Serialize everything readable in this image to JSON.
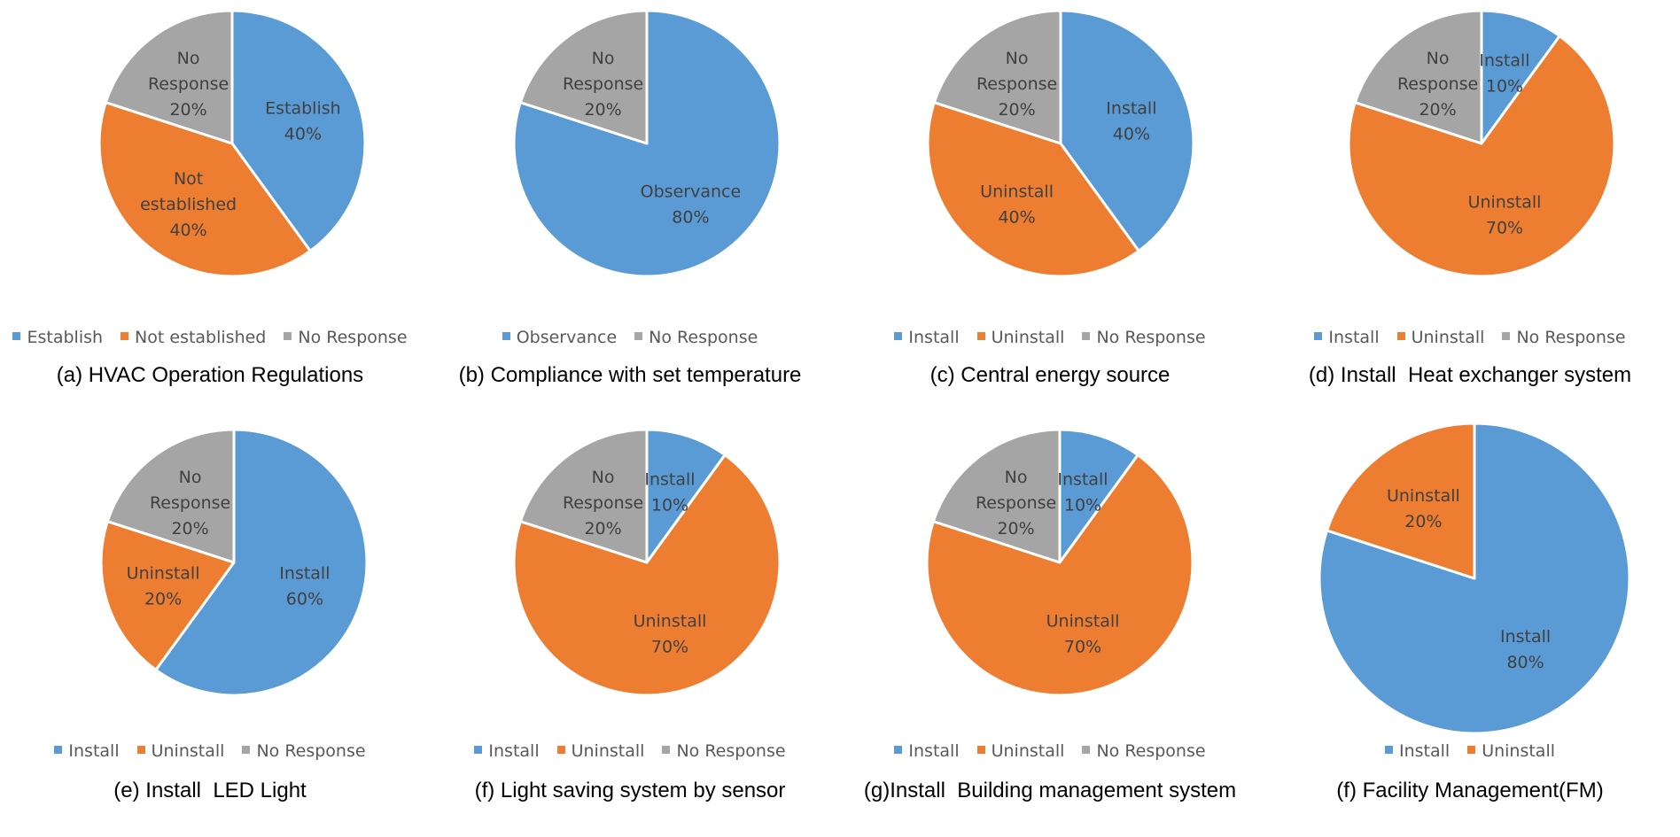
{
  "colors": {
    "Establish": "#5b9bd5",
    "Not established": "#ed7d31",
    "No Response": "#a5a5a5",
    "Observance": "#5b9bd5",
    "Install": "#5b9bd5",
    "Uninstall": "#ed7d31"
  },
  "chart_data": [
    {
      "type": "pie",
      "title": "(a) HVAC Operation Regulations",
      "slices": [
        {
          "label": "Establish",
          "label_lines": [
            "Establish"
          ],
          "value": 40,
          "value_label": "40%"
        },
        {
          "label": "Not established",
          "label_lines": [
            "Not",
            "established"
          ],
          "value": 40,
          "value_label": "40%"
        },
        {
          "label": "No Response",
          "label_lines": [
            "No",
            "Response"
          ],
          "value": 20,
          "value_label": "20%"
        }
      ],
      "legend": [
        "Establish",
        "Not established",
        "No Response"
      ]
    },
    {
      "type": "pie",
      "title": "(b) Compliance with set temperature",
      "slices": [
        {
          "label": "Observance",
          "label_lines": [
            "Observance"
          ],
          "value": 80,
          "value_label": "80%"
        },
        {
          "label": "No Response",
          "label_lines": [
            "No",
            "Response"
          ],
          "value": 20,
          "value_label": "20%"
        }
      ],
      "legend": [
        "Observance",
        "No Response"
      ]
    },
    {
      "type": "pie",
      "title": "(c) Central energy source",
      "slices": [
        {
          "label": "Install",
          "label_lines": [
            "Install"
          ],
          "value": 40,
          "value_label": "40%"
        },
        {
          "label": "Uninstall",
          "label_lines": [
            "Uninstall"
          ],
          "value": 40,
          "value_label": "40%"
        },
        {
          "label": "No Response",
          "label_lines": [
            "No",
            "Response"
          ],
          "value": 20,
          "value_label": "20%"
        }
      ],
      "legend": [
        "Install",
        "Uninstall",
        "No Response"
      ]
    },
    {
      "type": "pie",
      "title": "(d) Install  Heat exchanger system",
      "slices": [
        {
          "label": "Install",
          "label_lines": [
            "Install"
          ],
          "value": 10,
          "value_label": "10%"
        },
        {
          "label": "Uninstall",
          "label_lines": [
            "Uninstall"
          ],
          "value": 70,
          "value_label": "70%"
        },
        {
          "label": "No Response",
          "label_lines": [
            "No",
            "Response"
          ],
          "value": 20,
          "value_label": "20%"
        }
      ],
      "legend": [
        "Install",
        "Uninstall",
        "No Response"
      ]
    },
    {
      "type": "pie",
      "title": "(e) Install  LED Light",
      "slices": [
        {
          "label": "Install",
          "label_lines": [
            "Install"
          ],
          "value": 60,
          "value_label": "60%"
        },
        {
          "label": "Uninstall",
          "label_lines": [
            "Uninstall"
          ],
          "value": 20,
          "value_label": "20%"
        },
        {
          "label": "No Response",
          "label_lines": [
            "No",
            "Response"
          ],
          "value": 20,
          "value_label": "20%"
        }
      ],
      "legend": [
        "Install",
        "Uninstall",
        "No Response"
      ]
    },
    {
      "type": "pie",
      "title": "(f) Light saving system by sensor",
      "slices": [
        {
          "label": "Install",
          "label_lines": [
            "Install"
          ],
          "value": 10,
          "value_label": "10%"
        },
        {
          "label": "Uninstall",
          "label_lines": [
            "Uninstall"
          ],
          "value": 70,
          "value_label": "70%"
        },
        {
          "label": "No Response",
          "label_lines": [
            "No",
            "Response"
          ],
          "value": 20,
          "value_label": "20%"
        }
      ],
      "legend": [
        "Install",
        "Uninstall",
        "No Response"
      ]
    },
    {
      "type": "pie",
      "title": "(g)Install  Building management system",
      "slices": [
        {
          "label": "Install",
          "label_lines": [
            "Install"
          ],
          "value": 10,
          "value_label": "10%"
        },
        {
          "label": "Uninstall",
          "label_lines": [
            "Uninstall"
          ],
          "value": 70,
          "value_label": "70%"
        },
        {
          "label": "No Response",
          "label_lines": [
            "No",
            "Response"
          ],
          "value": 20,
          "value_label": "20%"
        }
      ],
      "legend": [
        "Install",
        "Uninstall",
        "No Response"
      ]
    },
    {
      "type": "pie",
      "title": "(f) Facility Management(FM)",
      "slices": [
        {
          "label": "Install",
          "label_lines": [
            "Install"
          ],
          "value": 80,
          "value_label": "80%"
        },
        {
          "label": "Uninstall",
          "label_lines": [
            "Uninstall"
          ],
          "value": 20,
          "value_label": "20%"
        }
      ],
      "legend": [
        "Install",
        "Uninstall"
      ]
    }
  ]
}
